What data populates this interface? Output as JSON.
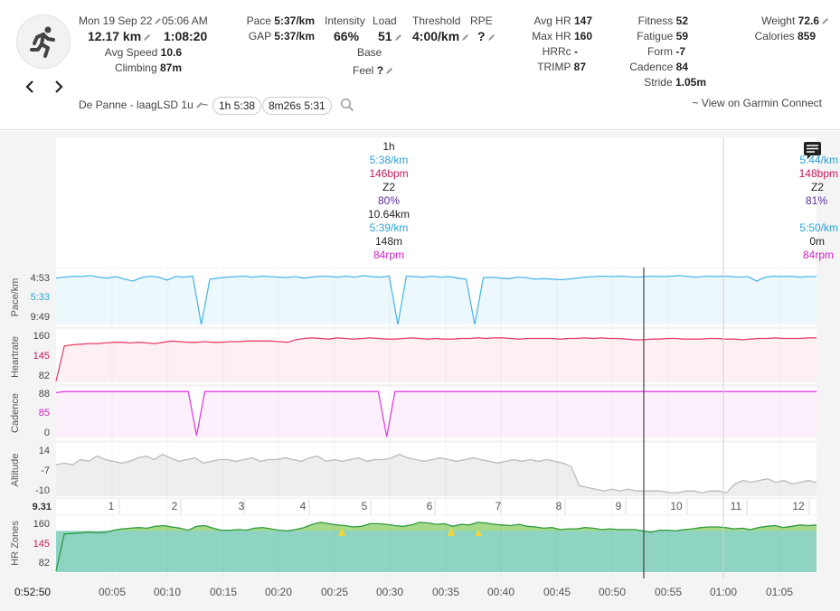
{
  "header": {
    "date": "Mon 19 Sep 22",
    "time": "05:06 AM",
    "distance": "12.17 km",
    "duration": "1:08:20",
    "avg_speed_label": "Avg Speed",
    "avg_speed": "10.6",
    "climbing_label": "Climbing",
    "climbing": "87m",
    "pace_label": "Pace",
    "pace": "5:37/km",
    "gap_label": "GAP",
    "gap": "5:37/km",
    "intensity_label": "Intensity",
    "intensity": "66%",
    "load_label": "Load",
    "load": "51",
    "threshold_label": "Threshold",
    "threshold": "4:00/km",
    "rpe_label": "RPE",
    "rpe": "?",
    "base_label": "Base",
    "feel_label": "Feel",
    "feel": "?",
    "avg_hr_label": "Avg HR",
    "avg_hr": "147",
    "max_hr_label": "Max HR",
    "max_hr": "160",
    "hrrc_label": "HRRc",
    "hrrc": "-",
    "trimp_label": "TRIMP",
    "trimp": "87",
    "fitness_label": "Fitness",
    "fitness": "52",
    "fatigue_label": "Fatigue",
    "fatigue": "59",
    "form_label": "Form",
    "form": "-7",
    "cadence_label": "Cadence",
    "cadence": "84",
    "stride_label": "Stride",
    "stride": "1.05m",
    "weight_label": "Weight",
    "weight": "72.6",
    "calories_label": "Calories",
    "calories": "859",
    "activity_name": "De Panne - laagLSD 1u",
    "tilde": "~",
    "pill_1": "1h 5:38",
    "pill_2": "8m26s 5:31",
    "garmin_link": "~ View on Garmin Connect"
  },
  "tooltip_left": {
    "time": "1h",
    "pace": "5:38/km",
    "hr": "146bpm",
    "zone": "Z2",
    "zone_pct": "80%",
    "dist": "10.64km",
    "gap": "5:39/km",
    "alt": "148m",
    "cad": "84rpm"
  },
  "tooltip_right": {
    "pace": "5:44/km",
    "hr": "148bpm",
    "zone": "Z2",
    "zone_pct": "81%",
    "gap": "5:50/km",
    "alt": "0m",
    "cad": "84rpm"
  },
  "panels": [
    {
      "label": "Pace/km",
      "ticks": [
        "4:53",
        "5:33",
        "9:49"
      ],
      "highlight": "5:33",
      "color": "#4db8e8"
    },
    {
      "label": "Heartrate",
      "ticks": [
        "160",
        "145",
        "82"
      ],
      "highlight": "145",
      "color": "#e8426b"
    },
    {
      "label": "Cadence",
      "ticks": [
        "88",
        "85",
        "0"
      ],
      "highlight": "85",
      "color": "#e040e0"
    },
    {
      "label": "Altitude",
      "ticks": [
        "14",
        "-7",
        "-10"
      ],
      "highlight": "-7",
      "color": "#aaaaaa"
    },
    {
      "label": "HR Zones",
      "ticks": [
        "160",
        "145",
        "82"
      ],
      "highlight": "145",
      "color": "#3aa04a"
    }
  ],
  "colors": {
    "pace": "#4db8e8",
    "heartrate": "#e8426b",
    "cadence": "#e040e0",
    "altitude": "#bbbbbb",
    "zones_line": "#2e9a3e",
    "zones_fill_low": "#8fd4c3",
    "zones_fill_mid": "#a6d98a",
    "zones_fill_high": "#f2d43a",
    "highlight_tick": "#c2185b"
  },
  "km_strip": {
    "start": "9.31",
    "laps": [
      "1",
      "2",
      "3",
      "4",
      "5",
      "6",
      "7",
      "8",
      "9",
      "10",
      "11",
      "12"
    ]
  },
  "time_axis": {
    "cursor": "0:52:50",
    "ticks": [
      "00:05",
      "00:10",
      "00:15",
      "00:20",
      "00:25",
      "00:30",
      "00:35",
      "00:40",
      "00:45",
      "00:50",
      "00:55",
      "01:00",
      "01:05"
    ]
  },
  "series": {
    "pace": [
      5.2,
      5.1,
      5.0,
      5.05,
      4.95,
      5.1,
      5.2,
      5.05,
      5.3,
      5.5,
      5.15,
      5.0,
      5.1,
      5.4,
      5.05,
      5.1,
      5.0,
      9.8,
      5.3,
      5.2,
      5.1,
      5.05,
      5.0,
      5.1,
      5.0,
      5.05,
      5.1,
      5.15,
      5.05,
      5.2,
      5.1,
      5.0,
      5.05,
      5.1,
      5.0,
      5.1,
      4.95,
      5.05,
      5.1,
      5.0,
      9.8,
      5.0,
      5.05,
      5.1,
      5.0,
      5.1,
      5.05,
      5.2,
      5.3,
      9.8,
      5.15,
      5.1,
      5.2,
      5.25,
      5.1,
      5.15,
      5.3,
      5.25,
      5.3,
      5.35,
      5.3,
      5.2,
      5.1,
      5.05,
      5.0,
      5.05,
      5.0,
      5.05,
      5.1,
      5.05,
      5.0,
      5.05,
      5.0,
      4.95,
      5.05,
      5.1,
      5.0,
      5.05,
      5.0,
      5.05,
      5.1,
      5.05,
      5.5,
      5.1,
      5.0,
      5.05,
      5.0,
      5.1,
      5.05,
      5.05
    ],
    "heartrate": [
      84,
      140,
      142,
      143,
      144,
      144,
      145,
      146,
      146,
      145,
      146,
      145,
      144,
      146,
      148,
      147,
      146,
      146,
      147,
      146,
      146,
      147,
      147,
      148,
      148,
      148,
      148,
      147,
      146,
      150,
      152,
      153,
      152,
      151,
      153,
      152,
      151,
      152,
      153,
      152,
      151,
      151,
      152,
      153,
      152,
      151,
      152,
      151,
      151,
      152,
      152,
      153,
      152,
      153,
      153,
      152,
      151,
      152,
      152,
      152,
      152,
      151,
      152,
      152,
      153,
      152,
      153,
      152,
      152,
      151,
      150,
      150,
      151,
      151,
      152,
      152,
      151,
      151,
      151,
      152,
      152,
      151,
      151,
      150,
      151,
      152,
      152,
      153,
      152,
      152,
      152,
      153,
      153
    ],
    "cadence": [
      84,
      86,
      86,
      86,
      86,
      86,
      86,
      86,
      86,
      86,
      86,
      86,
      86,
      86,
      86,
      86,
      86,
      5,
      86,
      86,
      86,
      86,
      86,
      86,
      86,
      86,
      86,
      86,
      86,
      86,
      86,
      86,
      86,
      86,
      86,
      86,
      86,
      86,
      86,
      86,
      3,
      86,
      86,
      86,
      86,
      86,
      86,
      86,
      86,
      86,
      86,
      86,
      86,
      86,
      86,
      86,
      86,
      86,
      86,
      86,
      86,
      86,
      86,
      86,
      86,
      86,
      86,
      86,
      86,
      86,
      86,
      86,
      86,
      86,
      86,
      86,
      86,
      86,
      86,
      86,
      86,
      86,
      86,
      86,
      86,
      86,
      86,
      86,
      86,
      86,
      86,
      86,
      86
    ],
    "altitude": [
      6,
      7,
      6,
      9,
      8,
      11,
      9,
      8,
      7,
      8,
      10,
      11,
      9,
      12,
      10,
      8,
      9,
      10,
      7,
      8,
      9,
      9,
      8,
      9,
      10,
      8,
      9,
      9,
      10,
      9,
      8,
      10,
      11,
      8,
      9,
      8,
      9,
      10,
      8,
      9,
      9,
      10,
      12,
      10,
      9,
      8,
      9,
      10,
      9,
      8,
      9,
      10,
      9,
      8,
      7,
      8,
      9,
      8,
      9,
      8,
      9,
      8,
      7,
      5,
      -6,
      -7,
      -8,
      -9,
      -8,
      -9,
      -8,
      -9,
      -9,
      -9,
      -9,
      -10,
      -10,
      -9,
      -9,
      -10,
      -9,
      -9,
      -10,
      -5,
      -3,
      -4,
      -3,
      -2,
      -4,
      -3,
      -5,
      -4,
      -3,
      -4
    ],
    "zones": [
      84,
      140,
      141,
      142,
      143,
      142,
      143,
      146,
      148,
      149,
      150,
      149,
      152,
      153,
      151,
      149,
      146,
      152,
      153,
      149,
      146,
      146,
      147,
      146,
      149,
      150,
      148,
      146,
      145,
      147,
      150,
      155,
      158,
      156,
      154,
      153,
      151,
      152,
      156,
      156,
      155,
      153,
      152,
      154,
      158,
      157,
      155,
      156,
      152,
      155,
      154,
      158,
      157,
      155,
      154,
      153,
      155,
      152,
      151,
      149,
      150,
      147,
      148,
      148,
      150,
      149,
      147,
      148,
      147,
      147,
      147,
      145,
      143,
      146,
      146,
      145,
      147,
      148,
      150,
      151,
      151,
      150,
      148,
      149,
      147,
      150,
      152,
      153,
      150,
      152,
      154,
      153,
      154
    ]
  }
}
